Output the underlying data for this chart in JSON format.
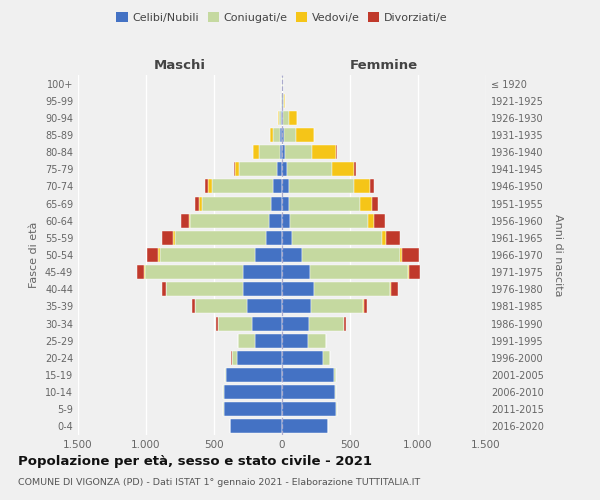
{
  "age_groups": [
    "0-4",
    "5-9",
    "10-14",
    "15-19",
    "20-24",
    "25-29",
    "30-34",
    "35-39",
    "40-44",
    "45-49",
    "50-54",
    "55-59",
    "60-64",
    "65-69",
    "70-74",
    "75-79",
    "80-84",
    "85-89",
    "90-94",
    "95-99",
    "100+"
  ],
  "birth_years": [
    "2016-2020",
    "2011-2015",
    "2006-2010",
    "2001-2005",
    "1996-2000",
    "1991-1995",
    "1986-1990",
    "1981-1985",
    "1976-1980",
    "1971-1975",
    "1966-1970",
    "1961-1965",
    "1956-1960",
    "1951-1955",
    "1946-1950",
    "1941-1945",
    "1936-1940",
    "1931-1935",
    "1926-1930",
    "1921-1925",
    "≤ 1920"
  ],
  "male": {
    "celibe": [
      380,
      430,
      430,
      410,
      330,
      200,
      220,
      260,
      290,
      290,
      200,
      120,
      95,
      80,
      65,
      35,
      15,
      12,
      6,
      3,
      2
    ],
    "coniugato": [
      1,
      2,
      5,
      10,
      40,
      120,
      250,
      380,
      560,
      720,
      700,
      670,
      580,
      510,
      450,
      280,
      155,
      55,
      18,
      4,
      1
    ],
    "vedovo": [
      0,
      0,
      0,
      0,
      0,
      1,
      2,
      3,
      5,
      5,
      10,
      10,
      10,
      20,
      30,
      30,
      40,
      20,
      5,
      1,
      0
    ],
    "divorziato": [
      0,
      0,
      0,
      1,
      2,
      5,
      10,
      20,
      30,
      50,
      80,
      80,
      60,
      30,
      20,
      10,
      5,
      2,
      1,
      0,
      0
    ]
  },
  "female": {
    "nubile": [
      340,
      400,
      390,
      380,
      300,
      190,
      195,
      215,
      235,
      205,
      145,
      75,
      60,
      55,
      50,
      35,
      25,
      18,
      10,
      5,
      2
    ],
    "coniugata": [
      1,
      2,
      5,
      15,
      50,
      130,
      260,
      380,
      560,
      720,
      720,
      660,
      570,
      520,
      480,
      335,
      195,
      85,
      38,
      8,
      2
    ],
    "vedova": [
      0,
      0,
      0,
      0,
      1,
      1,
      3,
      5,
      8,
      10,
      20,
      30,
      50,
      90,
      120,
      160,
      180,
      130,
      60,
      10,
      2
    ],
    "divorziata": [
      0,
      0,
      0,
      1,
      2,
      5,
      12,
      25,
      50,
      80,
      120,
      100,
      80,
      40,
      25,
      15,
      8,
      3,
      1,
      0,
      0
    ]
  },
  "colors": {
    "celibe": "#4472c4",
    "coniugato": "#c5d9a0",
    "vedovo": "#f5c518",
    "divorziato": "#c0392b"
  },
  "title": "Popolazione per età, sesso e stato civile - 2021",
  "subtitle": "COMUNE DI VIGONZA (PD) - Dati ISTAT 1° gennaio 2021 - Elaborazione TUTTITALIA.IT",
  "xlabel_left": "Maschi",
  "xlabel_right": "Femmine",
  "ylabel_left": "Fasce di età",
  "ylabel_right": "Anni di nascita",
  "xlim": 1500,
  "background_color": "#f0f0f0",
  "grid_color": "#ffffff"
}
